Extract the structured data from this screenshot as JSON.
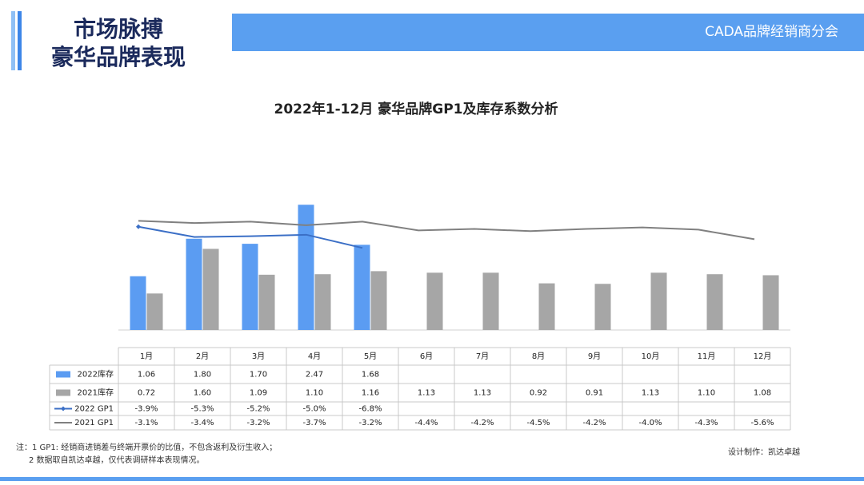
{
  "header": {
    "title_line1": "市场脉搏",
    "title_line2": "豪华品牌表现",
    "org": "CADA品牌经销商分会"
  },
  "chart_data": {
    "type": "combo",
    "title": "2022年1-12月 豪华品牌GP1及库存系数分析",
    "categories": [
      "1月",
      "2月",
      "3月",
      "4月",
      "5月",
      "6月",
      "7月",
      "8月",
      "9月",
      "10月",
      "11月",
      "12月"
    ],
    "ylim": [
      0,
      2.6
    ],
    "y2lim": [
      -18,
      0
    ],
    "series": [
      {
        "name": "2022库存",
        "type": "bar",
        "color": "#5b9cf2",
        "values": [
          1.06,
          1.8,
          1.7,
          2.47,
          1.68,
          null,
          null,
          null,
          null,
          null,
          null,
          null
        ],
        "value_labels": [
          "1.06",
          "1.80",
          "1.70",
          "2.47",
          "1.68",
          null,
          null,
          null,
          null,
          null,
          null,
          null
        ]
      },
      {
        "name": "2021库存",
        "type": "bar",
        "color": "#a6a6a6",
        "values": [
          0.72,
          1.6,
          1.09,
          1.1,
          1.16,
          1.13,
          1.13,
          0.92,
          0.91,
          1.13,
          1.1,
          1.08
        ],
        "value_labels": [
          "0.72",
          "1.60",
          "1.09",
          "1.10",
          "1.16",
          "1.13",
          "1.13",
          "0.92",
          "0.91",
          "1.13",
          "1.10",
          "1.08"
        ]
      },
      {
        "name": "2022 GP1",
        "type": "line",
        "axis": "y2",
        "color": "#3b6fc6",
        "marker": "diamond",
        "values": [
          -3.9,
          -5.3,
          -5.2,
          -5.0,
          -6.8,
          null,
          null,
          null,
          null,
          null,
          null,
          null
        ],
        "value_labels": [
          "-3.9%",
          "-5.3%",
          "-5.2%",
          "-5.0%",
          "-6.8%",
          null,
          null,
          null,
          null,
          null,
          null,
          null
        ]
      },
      {
        "name": "2021 GP1",
        "type": "line",
        "axis": "y2",
        "color": "#808080",
        "values": [
          -3.1,
          -3.4,
          -3.2,
          -3.7,
          -3.2,
          -4.4,
          -4.2,
          -4.5,
          -4.2,
          -4.0,
          -4.3,
          -5.6
        ],
        "value_labels": [
          "-3.1%",
          "-3.4%",
          "-3.2%",
          "-3.7%",
          "-3.2%",
          "-4.4%",
          "-4.2%",
          "-4.5%",
          "-4.2%",
          "-4.0%",
          "-4.3%",
          "-5.6%"
        ]
      }
    ]
  },
  "notes": [
    "注：1 GP1: 经销商进销差与终端开票价的比值，不包含返利及衍生收入；",
    "2 数据取自凯达卓越，仅代表调研样本表现情况。"
  ],
  "credit": "设计制作：凯达卓越"
}
